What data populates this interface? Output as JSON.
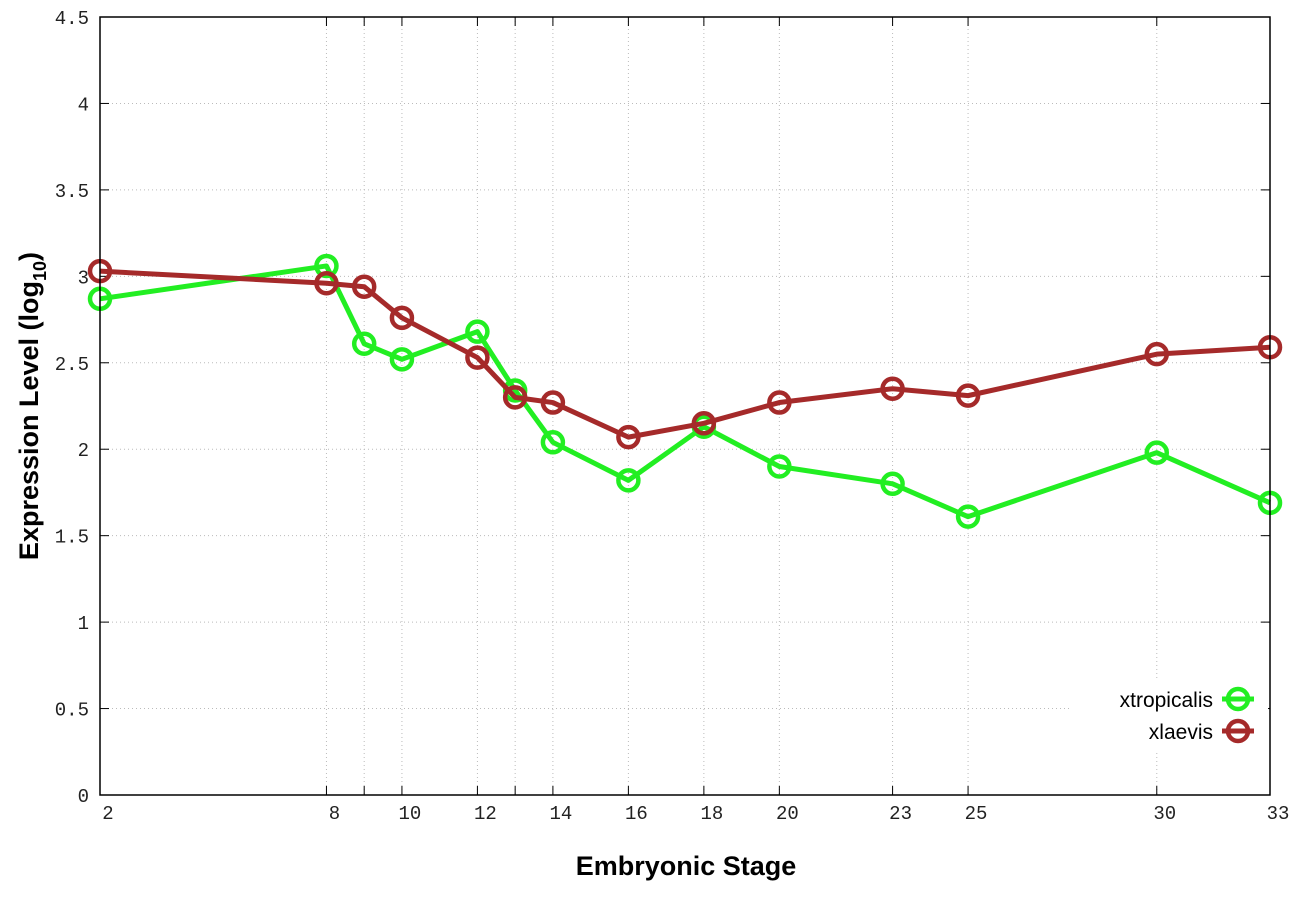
{
  "chart_data": {
    "type": "line",
    "xlabel": "Embryonic Stage",
    "ylabel": "Expression Level (log",
    "ylabel_subscript": "10",
    "ylabel_close": ")",
    "xlim": [
      2,
      33
    ],
    "ylim": [
      0,
      4.5
    ],
    "x_ticks": [
      2,
      8,
      10,
      12,
      14,
      16,
      18,
      20,
      23,
      25,
      30,
      33
    ],
    "x_grid": [
      2,
      8,
      9,
      10,
      12,
      13,
      14,
      16,
      18,
      20,
      23,
      25,
      30,
      33
    ],
    "y_ticks": [
      "0",
      "0.5",
      "1",
      "1.5",
      "2",
      "2.5",
      "3",
      "3.5",
      "4",
      "4.5"
    ],
    "grid": true,
    "legend_position": "bottom-right",
    "x": [
      2,
      8,
      9,
      10,
      12,
      13,
      14,
      16,
      18,
      20,
      23,
      25,
      30,
      33
    ],
    "series": [
      {
        "name": "xtropicalis",
        "color": "#22ee22",
        "values": [
          2.87,
          3.06,
          2.61,
          2.52,
          2.68,
          2.34,
          2.04,
          1.82,
          2.13,
          1.9,
          1.8,
          1.61,
          1.98,
          1.69
        ]
      },
      {
        "name": "xlaevis",
        "color": "#a52a2a",
        "values": [
          3.03,
          2.96,
          2.94,
          2.76,
          2.53,
          2.3,
          2.27,
          2.07,
          2.15,
          2.27,
          2.35,
          2.31,
          2.55,
          2.59
        ]
      }
    ]
  }
}
